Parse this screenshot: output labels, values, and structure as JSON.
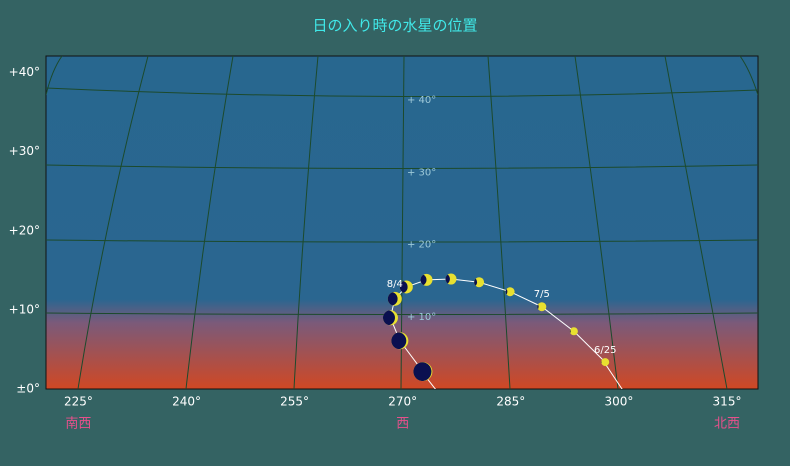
{
  "chart_data": {
    "type": "scatter",
    "title": "日の入り時の水星の位置",
    "x": [
      298.1,
      293.75,
      289.3,
      284.9,
      280.6,
      276.7,
      273.3,
      270.5,
      268.9,
      268.3,
      269.6,
      272.8
    ],
    "values": [
      3.4,
      7.3,
      10.4,
      12.3,
      13.5,
      13.9,
      13.8,
      12.9,
      11.4,
      9.0,
      6.1,
      2.2
    ],
    "sizes": [
      4,
      4,
      4.5,
      4.5,
      5,
      5.5,
      6,
      6.5,
      7,
      7.5,
      8.5,
      9.5
    ],
    "phase": [
      0.95,
      0.9,
      0.85,
      0.8,
      0.7,
      0.6,
      0.5,
      0.4,
      0.3,
      0.2,
      0.12,
      0.05
    ],
    "labels": [
      "6/25",
      null,
      "7/5",
      null,
      null,
      null,
      null,
      null,
      "8/4",
      null,
      null,
      null
    ],
    "color": "#e8e030",
    "dark_color": "#0a1050",
    "xlim": [
      220.5,
      319.3
    ],
    "ylim": [
      0,
      42.1
    ],
    "xticks": [
      {
        "value": 225,
        "label": "225°"
      },
      {
        "value": 240,
        "label": "240°"
      },
      {
        "value": 255,
        "label": "255°"
      },
      {
        "value": 270,
        "label": "270°"
      },
      {
        "value": 285,
        "label": "285°"
      },
      {
        "value": 300,
        "label": "300°"
      },
      {
        "value": 315,
        "label": "315°"
      }
    ],
    "yticks": [
      {
        "value": 0,
        "label": "±0°"
      },
      {
        "value": 10,
        "label": "+10°"
      },
      {
        "value": 20,
        "label": "+20°"
      },
      {
        "value": 30,
        "label": "+30°"
      },
      {
        "value": 40,
        "label": "+40°"
      }
    ],
    "grid_labels": [
      {
        "value": 10,
        "label": "+ 10°"
      },
      {
        "value": 20,
        "label": "+ 20°"
      },
      {
        "value": 30,
        "label": "+ 30°"
      },
      {
        "value": 40,
        "label": "+ 40°"
      }
    ],
    "directions": [
      {
        "value": 225,
        "label": "南西"
      },
      {
        "value": 270,
        "label": "西"
      },
      {
        "value": 315,
        "label": "北西"
      }
    ]
  }
}
